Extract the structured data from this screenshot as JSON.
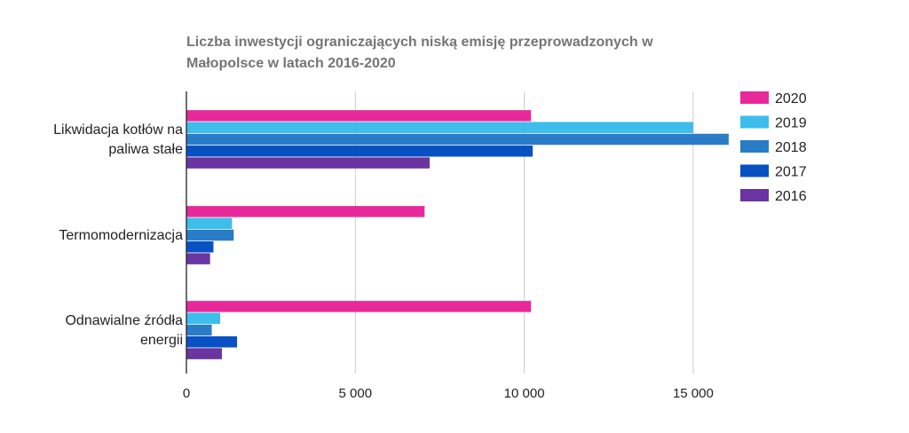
{
  "chart_data": {
    "type": "bar",
    "orientation": "horizontal",
    "title_lines": [
      "Liczba inwestycji ograniczających niską emisję przeprowadzonych w",
      "Małopolsce w latach 2016-2020"
    ],
    "categories": [
      [
        "Likwidacja kotłów na",
        "paliwa stałe"
      ],
      [
        "Termomodernizacja"
      ],
      [
        "Odnawialne źródła",
        "energii"
      ]
    ],
    "series": [
      {
        "name": "2020",
        "color": "#e8299a",
        "values": [
          10200,
          7050,
          10200
        ]
      },
      {
        "name": "2019",
        "color": "#3dbdec",
        "values": [
          15000,
          1350,
          1000
        ]
      },
      {
        "name": "2018",
        "color": "#2a7cc7",
        "values": [
          16050,
          1400,
          750
        ]
      },
      {
        "name": "2017",
        "color": "#0751c2",
        "values": [
          10250,
          800,
          1500
        ]
      },
      {
        "name": "2016",
        "color": "#6a35a0",
        "values": [
          7200,
          700,
          1050
        ]
      }
    ],
    "xlim": [
      0,
      16500
    ],
    "xticks": [
      0,
      5000,
      10000,
      15000
    ],
    "xtick_labels": [
      "0",
      "5 000",
      "10 000",
      "15 000"
    ],
    "grid": true,
    "legend_position": "right"
  }
}
